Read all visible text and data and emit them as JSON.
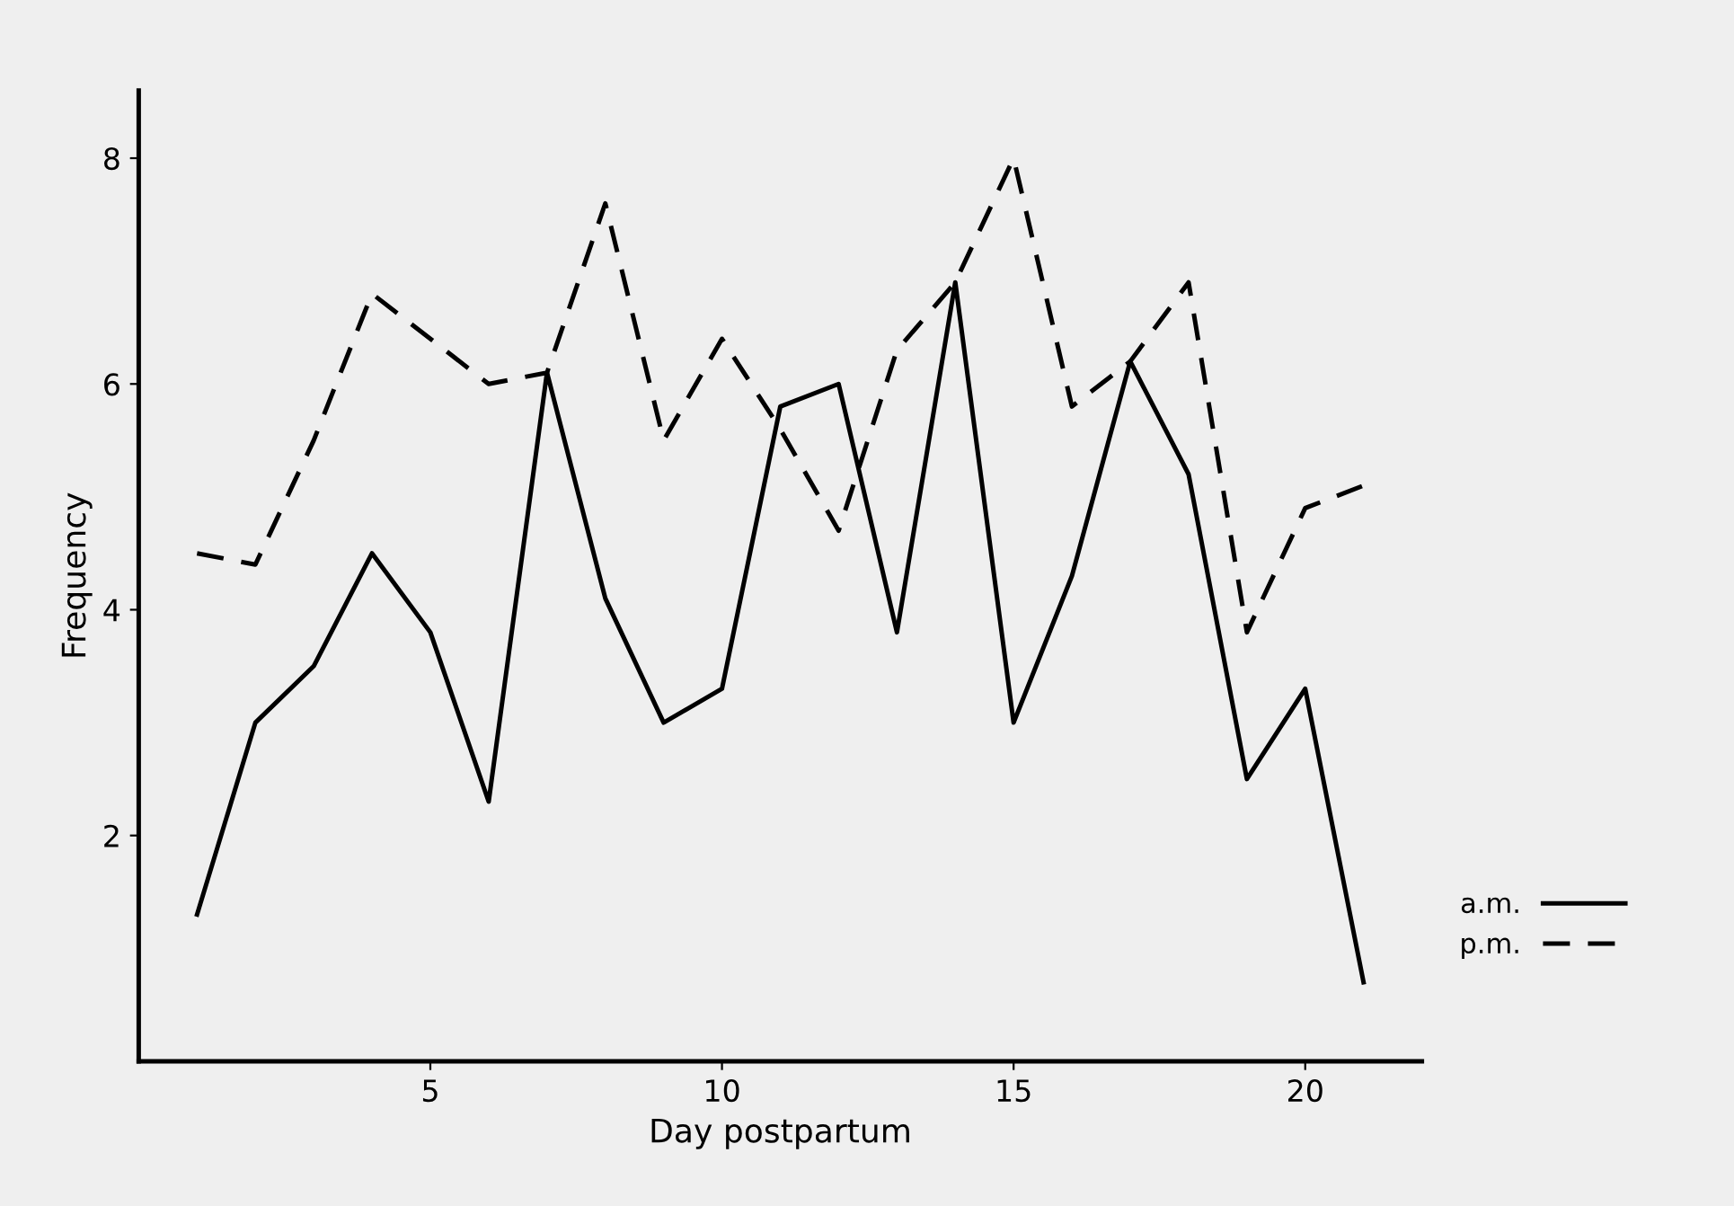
{
  "chart_data": {
    "type": "line",
    "xlabel": "Day postpartum",
    "ylabel": "Frequency",
    "x": [
      1,
      2,
      3,
      4,
      5,
      6,
      7,
      8,
      9,
      10,
      11,
      12,
      13,
      14,
      15,
      16,
      17,
      18,
      19,
      20,
      21
    ],
    "series": [
      {
        "name": "a.m.",
        "color": "#000000",
        "line_style": "solid",
        "values": [
          1.3,
          3.0,
          3.5,
          4.5,
          3.8,
          2.3,
          6.1,
          4.1,
          3.0,
          3.3,
          5.8,
          6.0,
          3.8,
          6.9,
          3.0,
          4.3,
          6.2,
          5.2,
          2.5,
          3.3,
          0.7
        ]
      },
      {
        "name": "p.m.",
        "color": "#000000",
        "line_style": "dashed",
        "values": [
          4.5,
          4.4,
          5.5,
          6.8,
          6.4,
          6.0,
          6.1,
          7.6,
          5.5,
          6.4,
          5.6,
          4.7,
          6.3,
          6.9,
          8.0,
          5.8,
          6.2,
          6.9,
          3.8,
          4.9,
          5.1
        ]
      }
    ],
    "xlim": [
      0,
      22
    ],
    "ylim": [
      0,
      8.6
    ],
    "xticks": [
      5,
      10,
      15,
      20
    ],
    "yticks": [
      2,
      4,
      6,
      8
    ],
    "grid": false,
    "legend": "bottom right",
    "marker": "none"
  }
}
